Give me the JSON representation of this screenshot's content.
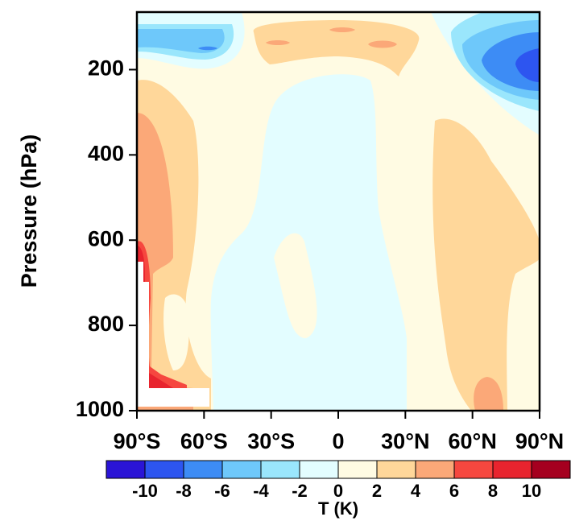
{
  "chart_data": {
    "type": "contour",
    "y_label": "Pressure (hPa)",
    "xlim": [
      -90,
      90
    ],
    "xticks": [
      {
        "value": -90,
        "label": "90°S"
      },
      {
        "value": -60,
        "label": "60°S"
      },
      {
        "value": -30,
        "label": "30°S"
      },
      0,
      {
        "value": 30,
        "label": "30°N"
      },
      {
        "value": 60,
        "label": "60°N"
      },
      {
        "value": 90,
        "label": "90°N"
      }
    ],
    "ylim": [
      1000,
      65
    ],
    "yticks": [
      200,
      400,
      600,
      800,
      1000
    ],
    "colorbar_title": "T (K)",
    "colorbar_ticks": [
      -10,
      -8,
      -6,
      -4,
      -2,
      0,
      2,
      4,
      6,
      8,
      10
    ],
    "colors": [
      "#2a14d6",
      "#2d55f0",
      "#3d8cf5",
      "#6ec8fa",
      "#9ae6fc",
      "#e3fdff",
      "#fffbe3",
      "#ffd79a",
      "#fba878",
      "#f6473f",
      "#e8242e",
      "#a5001f"
    ]
  }
}
